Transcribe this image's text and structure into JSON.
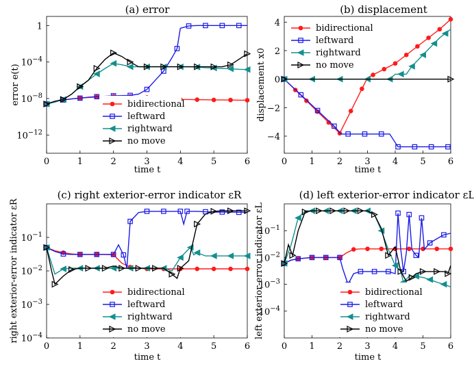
{
  "figure": {
    "series_style": {
      "bidirectional": {
        "color": "#ff1a1a",
        "marker": "dot"
      },
      "leftward": {
        "color": "#1a1ae6",
        "marker": "square"
      },
      "rightward": {
        "color": "#138f8f",
        "marker": "tri-left"
      },
      "no move": {
        "color": "#000000",
        "marker": "tri-right"
      }
    }
  },
  "chart_data": [
    {
      "id": "a",
      "type": "line",
      "title": "(a) error",
      "xlabel": "time t",
      "ylabel": "error e(t)",
      "yscale": "log",
      "xlim": [
        0,
        6
      ],
      "ylim": [
        1e-14,
        10
      ],
      "xticks": [
        0,
        1,
        2,
        3,
        4,
        5,
        6
      ],
      "yticks": [
        1e-12,
        1e-08,
        0.0001,
        1
      ],
      "ytick_labels": [
        "10^-12",
        "10^-8",
        "10^-4",
        "1"
      ],
      "legend": {
        "position": "bottom-center",
        "entries": [
          "bidirectional",
          "leftward",
          "rightward",
          "no move"
        ]
      },
      "series": [
        {
          "name": "bidirectional",
          "x": [
            0,
            0.25,
            0.5,
            0.75,
            1,
            1.25,
            1.5,
            1.75,
            2,
            2.25,
            2.5,
            2.75,
            3,
            3.25,
            3.5,
            3.75,
            4,
            4.25,
            4.5,
            4.75,
            5,
            5.25,
            5.5,
            5.75,
            6
          ],
          "y": [
            2.5e-09,
            5e-09,
            7e-09,
            9e-09,
            1.1e-08,
            1.3e-08,
            1.5e-08,
            1.6e-08,
            1.7e-08,
            1.8e-08,
            1.7e-08,
            1.5e-08,
            1.3e-08,
            1.1e-08,
            9e-09,
            8.5e-09,
            8e-09,
            7.8e-09,
            7.5e-09,
            7.3e-09,
            7e-09,
            7e-09,
            6.8e-09,
            6.6e-09,
            6.5e-09
          ]
        },
        {
          "name": "leftward",
          "x": [
            0,
            0.25,
            0.5,
            0.75,
            1,
            1.25,
            1.5,
            1.75,
            2,
            2.25,
            2.5,
            2.75,
            3,
            3.25,
            3.5,
            3.75,
            3.9,
            4,
            4.25,
            4.5,
            4.75,
            5,
            5.25,
            5.5,
            5.75,
            6
          ],
          "y": [
            2.5e-09,
            5e-09,
            7e-09,
            9e-09,
            1.1e-08,
            1.4e-08,
            1.6e-08,
            1.8e-08,
            2e-08,
            2.1e-08,
            2.2e-08,
            3e-08,
            1e-07,
            1e-06,
            1e-05,
            0.0003,
            0.003,
            0.5,
            0.9,
            1,
            1,
            1,
            1,
            1,
            1,
            1
          ]
        },
        {
          "name": "rightward",
          "x": [
            0,
            0.25,
            0.5,
            0.75,
            1,
            1.25,
            1.5,
            1.75,
            2,
            2.25,
            2.5,
            2.75,
            3,
            3.25,
            3.5,
            3.75,
            4,
            4.25,
            4.5,
            4.75,
            5,
            5.25,
            5.5,
            5.75,
            6
          ],
          "y": [
            2.5e-09,
            4e-09,
            8e-09,
            3e-08,
            2e-07,
            1e-06,
            5e-06,
            2e-05,
            7e-05,
            5e-05,
            3e-05,
            3e-05,
            3e-05,
            3e-05,
            3e-05,
            3e-05,
            3e-05,
            3e-05,
            2.8e-05,
            2.4e-05,
            2.2e-05,
            2e-05,
            1.8e-05,
            1.6e-05,
            1.5e-05
          ]
        },
        {
          "name": "no move",
          "x": [
            0,
            0.25,
            0.5,
            0.75,
            1,
            1.25,
            1.5,
            1.75,
            2,
            2.25,
            2.5,
            2.75,
            3,
            3.25,
            3.5,
            3.75,
            4,
            4.25,
            4.5,
            4.75,
            5,
            5.25,
            5.5,
            5.75,
            6
          ],
          "y": [
            2.5e-09,
            5e-09,
            8e-09,
            3e-08,
            2e-07,
            1e-06,
            2e-05,
            0.0002,
            0.001,
            0.0004,
            0.0001,
            3e-05,
            3e-05,
            3e-05,
            3e-05,
            3e-05,
            3e-05,
            3e-05,
            3e-05,
            3e-05,
            3e-05,
            3e-05,
            5e-05,
            0.0002,
            0.0008
          ]
        }
      ]
    },
    {
      "id": "b",
      "type": "line",
      "title": "(b) displacement",
      "xlabel": "time t",
      "ylabel": "displacement x0",
      "yscale": "linear",
      "xlim": [
        0,
        6
      ],
      "ylim": [
        -5.2,
        4.4
      ],
      "xticks": [
        0,
        1,
        2,
        3,
        4,
        5,
        6
      ],
      "yticks": [
        -4,
        -2,
        0,
        2,
        4
      ],
      "ytick_labels": [
        "-4",
        "-2",
        "0",
        "2",
        "4"
      ],
      "legend": {
        "position": "top-left",
        "entries": [
          "bidirectional",
          "leftward",
          "rightward",
          "no move"
        ]
      },
      "series": [
        {
          "name": "bidirectional",
          "x": [
            0,
            0.2,
            0.4,
            0.6,
            0.8,
            1,
            1.2,
            1.4,
            1.6,
            1.8,
            2,
            2.2,
            2.4,
            2.6,
            2.8,
            3,
            3.2,
            3.4,
            3.6,
            3.8,
            4,
            4.2,
            4.4,
            4.6,
            4.8,
            5,
            5.2,
            5.4,
            5.6,
            5.8,
            6
          ],
          "y": [
            0,
            -0.38,
            -0.76,
            -1.14,
            -1.52,
            -1.9,
            -2.28,
            -2.66,
            -3.04,
            -3.42,
            -3.8,
            -3.02,
            -2.24,
            -1.46,
            -0.68,
            0.1,
            0.3,
            0.5,
            0.7,
            0.9,
            1.1,
            1.4,
            1.7,
            2.0,
            2.3,
            2.6,
            2.9,
            3.2,
            3.5,
            3.85,
            4.2
          ]
        },
        {
          "name": "leftward",
          "x": [
            0,
            0.3,
            0.6,
            0.9,
            1.2,
            1.5,
            1.8,
            2.05,
            2.3,
            2.6,
            2.9,
            3.2,
            3.5,
            3.8,
            4.1,
            4.4,
            4.7,
            5.0,
            5.3,
            5.6,
            5.9,
            6
          ],
          "y": [
            0,
            -0.55,
            -1.1,
            -1.65,
            -2.2,
            -2.75,
            -3.3,
            -3.85,
            -3.85,
            -3.85,
            -3.85,
            -3.85,
            -3.85,
            -3.85,
            -4.75,
            -4.75,
            -4.75,
            -4.75,
            -4.75,
            -4.75,
            -4.75,
            -4.75
          ]
        },
        {
          "name": "rightward",
          "x": [
            0,
            0.5,
            1,
            1.5,
            2,
            2.5,
            3,
            3.5,
            3.8,
            4.0,
            4.2,
            4.4,
            4.6,
            4.8,
            5.0,
            5.2,
            5.4,
            5.6,
            5.8,
            6
          ],
          "y": [
            0,
            0,
            0,
            0,
            0,
            0,
            0,
            0,
            0,
            0.35,
            0.35,
            0.35,
            0.9,
            1.3,
            1.7,
            2.1,
            2.5,
            2.9,
            3.2,
            3.5
          ]
        },
        {
          "name": "no move",
          "x": [
            0,
            6
          ],
          "y": [
            0,
            0
          ]
        }
      ]
    },
    {
      "id": "c",
      "type": "line",
      "title": "(c) right exterior-error indicator εR",
      "xlabel": "time t",
      "ylabel": "right exterior-error indicator εR",
      "yscale": "log",
      "xlim": [
        0,
        6
      ],
      "ylim": [
        0.0001,
        1
      ],
      "xticks": [
        0,
        1,
        2,
        3,
        4,
        5,
        6
      ],
      "yticks": [
        0.0001,
        0.001,
        0.01,
        0.1
      ],
      "ytick_labels": [
        "10^-4",
        "10^-3",
        "10^-2",
        "10^-1"
      ],
      "legend": {
        "position": "bottom-center",
        "entries": [
          "bidirectional",
          "leftward",
          "rightward",
          "no move"
        ]
      },
      "series": [
        {
          "name": "bidirectional",
          "x": [
            0,
            0.25,
            0.5,
            0.75,
            1,
            1.25,
            1.5,
            1.75,
            2,
            2.25,
            2.5,
            2.75,
            3,
            3.25,
            3.5,
            3.75,
            4,
            4.25,
            4.5,
            4.75,
            5,
            5.25,
            5.5,
            5.75,
            6
          ],
          "y": [
            0.05,
            0.04,
            0.035,
            0.032,
            0.031,
            0.031,
            0.031,
            0.031,
            0.03,
            0.017,
            0.013,
            0.012,
            0.0115,
            0.0115,
            0.0115,
            0.0115,
            0.0115,
            0.0115,
            0.0115,
            0.0115,
            0.0115,
            0.0115,
            0.0115,
            0.0115,
            0.0115
          ]
        },
        {
          "name": "leftward",
          "x": [
            0,
            0.25,
            0.5,
            0.75,
            1,
            1.25,
            1.5,
            1.75,
            2,
            2.15,
            2.3,
            2.4,
            2.5,
            2.75,
            3,
            3.25,
            3.5,
            3.75,
            4,
            4.1,
            4.2,
            4.5,
            4.75,
            5,
            5.25,
            5.5,
            5.75,
            6
          ],
          "y": [
            0.05,
            0.038,
            0.032,
            0.031,
            0.031,
            0.031,
            0.031,
            0.031,
            0.031,
            0.06,
            0.03,
            0.012,
            0.3,
            0.55,
            0.6,
            0.6,
            0.6,
            0.6,
            0.6,
            0.25,
            0.6,
            0.6,
            0.58,
            0.57,
            0.57,
            0.57,
            0.56,
            0.56
          ]
        },
        {
          "name": "rightward",
          "x": [
            0,
            0.25,
            0.5,
            0.75,
            1,
            1.25,
            1.5,
            1.75,
            2,
            2.25,
            2.5,
            2.75,
            3,
            3.25,
            3.5,
            3.75,
            4,
            4.2,
            4.3,
            4.4,
            4.5,
            4.75,
            5,
            5.25,
            5.5,
            5.75,
            6
          ],
          "y": [
            0.05,
            0.008,
            0.0115,
            0.012,
            0.012,
            0.012,
            0.012,
            0.012,
            0.012,
            0.012,
            0.012,
            0.012,
            0.012,
            0.012,
            0.012,
            0.01,
            0.025,
            0.04,
            0.05,
            0.03,
            0.035,
            0.028,
            0.028,
            0.028,
            0.028,
            0.028,
            0.028
          ]
        },
        {
          "name": "no move",
          "x": [
            0,
            0.15,
            0.25,
            0.5,
            0.75,
            1,
            1.25,
            1.5,
            1.75,
            2,
            2.25,
            2.5,
            2.75,
            3,
            3.25,
            3.5,
            3.75,
            3.9,
            4,
            4.25,
            4.5,
            4.75,
            5,
            5.25,
            5.5,
            5.75,
            6
          ],
          "y": [
            0.05,
            0.01,
            0.004,
            0.007,
            0.011,
            0.012,
            0.012,
            0.012,
            0.012,
            0.014,
            0.012,
            0.012,
            0.012,
            0.012,
            0.012,
            0.012,
            0.008,
            0.006,
            0.012,
            0.02,
            0.25,
            0.5,
            0.6,
            0.62,
            0.62,
            0.62,
            0.62
          ]
        }
      ]
    },
    {
      "id": "d",
      "type": "line",
      "title": "(d) left exterior-error indicator εL",
      "xlabel": "time t",
      "ylabel": "left exterior-error indicator εL",
      "yscale": "log",
      "xlim": [
        0,
        6
      ],
      "ylim": [
        1e-05,
        1
      ],
      "xticks": [
        0,
        1,
        2,
        3,
        4,
        5,
        6
      ],
      "yticks": [
        0.0001,
        0.001,
        0.01,
        0.1
      ],
      "ytick_labels": [
        "10^-4",
        "10^-3",
        "10^-2",
        "10^-1"
      ],
      "legend": {
        "position": "bottom-center",
        "entries": [
          "bidirectional",
          "leftward",
          "rightward",
          "no move"
        ]
      },
      "series": [
        {
          "name": "bidirectional",
          "x": [
            0,
            0.25,
            0.5,
            0.75,
            1,
            1.25,
            1.5,
            1.75,
            2,
            2.25,
            2.5,
            2.75,
            3,
            3.25,
            3.5,
            3.75,
            4,
            4.25,
            4.5,
            4.75,
            5,
            5.25,
            5.5,
            5.75,
            6
          ],
          "y": [
            0.006,
            0.008,
            0.009,
            0.0095,
            0.01,
            0.01,
            0.01,
            0.01,
            0.01,
            0.015,
            0.02,
            0.021,
            0.021,
            0.021,
            0.021,
            0.021,
            0.021,
            0.021,
            0.021,
            0.021,
            0.021,
            0.021,
            0.021,
            0.021,
            0.021
          ]
        },
        {
          "name": "leftward",
          "x": [
            0,
            0.25,
            0.5,
            0.75,
            1,
            1.25,
            1.5,
            1.75,
            2,
            2.1,
            2.3,
            2.5,
            2.75,
            3,
            3.25,
            3.5,
            3.75,
            4,
            4.1,
            4.2,
            4.3,
            4.4,
            4.5,
            4.6,
            4.75,
            4.85,
            4.95,
            5.05,
            5.25,
            5.5,
            5.75,
            6
          ],
          "y": [
            0.006,
            0.008,
            0.009,
            0.0095,
            0.01,
            0.01,
            0.01,
            0.01,
            0.01,
            0.004,
            0.001,
            0.0025,
            0.003,
            0.003,
            0.003,
            0.003,
            0.003,
            0.0025,
            0.45,
            0.02,
            0.003,
            0.015,
            0.4,
            0.02,
            0.012,
            0.01,
            0.3,
            0.02,
            0.035,
            0.05,
            0.07,
            0.08
          ]
        },
        {
          "name": "rightward",
          "x": [
            0,
            0.25,
            0.5,
            0.75,
            1,
            1.25,
            1.5,
            1.75,
            2,
            2.25,
            2.5,
            2.75,
            3,
            3.25,
            3.5,
            3.75,
            4,
            4.2,
            4.3,
            4.5,
            4.75,
            5,
            5.25,
            5.5,
            5.75,
            6
          ],
          "y": [
            0.006,
            0.03,
            0.3,
            0.55,
            0.55,
            0.55,
            0.55,
            0.55,
            0.55,
            0.55,
            0.55,
            0.55,
            0.55,
            0.4,
            0.1,
            0.02,
            0.005,
            0.003,
            0.0012,
            0.002,
            0.002,
            0.0018,
            0.0015,
            0.0012,
            0.001,
            0.0008
          ]
        },
        {
          "name": "no move",
          "x": [
            0,
            0.15,
            0.3,
            0.5,
            0.75,
            1,
            1.25,
            1.5,
            1.75,
            2,
            2.25,
            2.5,
            2.75,
            3,
            3.25,
            3.5,
            3.75,
            4,
            4.2,
            4.4,
            4.6,
            4.75,
            5,
            5.25,
            5.5,
            5.75,
            5.9,
            6
          ],
          "y": [
            0.006,
            0.03,
            0.012,
            0.1,
            0.5,
            0.55,
            0.55,
            0.55,
            0.55,
            0.55,
            0.55,
            0.55,
            0.55,
            0.55,
            0.4,
            0.12,
            0.012,
            0.025,
            0.003,
            0.0013,
            0.0018,
            0.0025,
            0.003,
            0.003,
            0.003,
            0.003,
            0.0025,
            0.005
          ]
        }
      ]
    }
  ]
}
